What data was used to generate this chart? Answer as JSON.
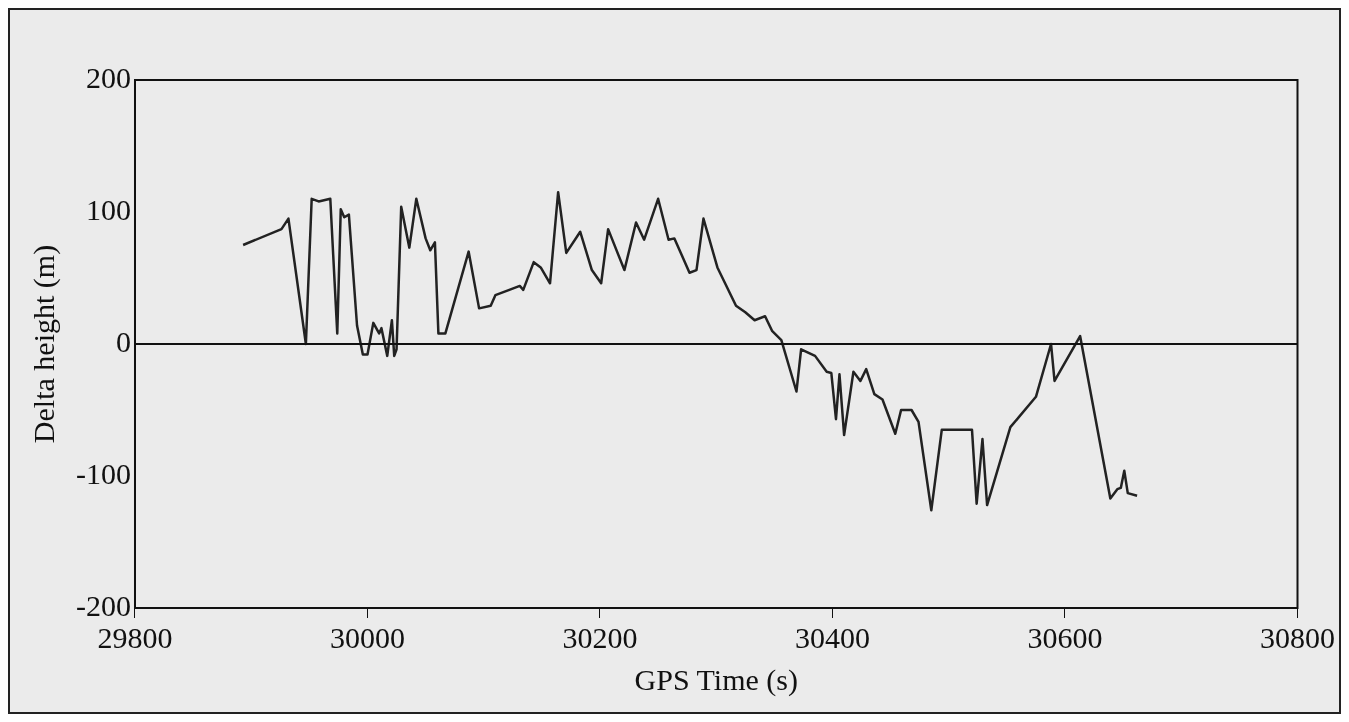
{
  "chart_data": {
    "type": "line",
    "xlabel": "GPS Time (s)",
    "ylabel": "Delta height (m)",
    "xlim": [
      29800,
      30800
    ],
    "xticks": [
      29800,
      30000,
      30200,
      30400,
      30600,
      30800
    ],
    "ylim": [
      -200,
      200
    ],
    "yticks": [
      -200,
      -100,
      0,
      100,
      200
    ],
    "grid": false,
    "legend": false,
    "marker": "none",
    "line_style": "solid",
    "ref_lines": [
      {
        "axis": "y",
        "value": 0,
        "color": "#111111"
      }
    ],
    "series": [
      {
        "color": "#222222",
        "x": [
          29893,
          29926,
          29932,
          29947,
          29952,
          29958,
          29968,
          29974,
          29977,
          29980,
          29984,
          29991,
          29996,
          30000,
          30005,
          30010,
          30012,
          30017,
          30021,
          30023,
          30025,
          30029,
          30036,
          30042,
          30050,
          30054,
          30058,
          30061,
          30067,
          30087,
          30096,
          30106,
          30110,
          30122,
          30131,
          30134,
          30143,
          30149,
          30157,
          30164,
          30171,
          30183,
          30193,
          30201,
          30207,
          30221,
          30231,
          30238,
          30250,
          30259,
          30264,
          30277,
          30283,
          30289,
          30301,
          30317,
          30325,
          30333,
          30342,
          30348,
          30356,
          30369,
          30373,
          30385,
          30395,
          30399,
          30403,
          30406,
          30410,
          30418,
          30424,
          30429,
          30436,
          30443,
          30454,
          30459,
          30468,
          30474,
          30485,
          30494,
          30520,
          30524,
          30529,
          30533,
          30553,
          30575,
          30588,
          30591,
          30613,
          30639,
          30645,
          30648,
          30651,
          30654,
          30662
        ],
        "values": [
          75,
          87,
          95,
          0,
          110,
          108,
          110,
          8,
          102,
          96,
          98,
          14,
          -8,
          -8,
          16,
          8,
          12,
          -9,
          18,
          -9,
          -4,
          104,
          73,
          110,
          80,
          71,
          77,
          8,
          8,
          70,
          27,
          29,
          37,
          41,
          44,
          41,
          62,
          58,
          46,
          115,
          69,
          85,
          56,
          46,
          87,
          56,
          92,
          79,
          110,
          79,
          80,
          54,
          56,
          95,
          58,
          29,
          24,
          18,
          21,
          10,
          3,
          -36,
          -4,
          -9,
          -21,
          -22,
          -57,
          -23,
          -69,
          -21,
          -28,
          -19,
          -38,
          -42,
          -68,
          -50,
          -50,
          -59,
          -126,
          -65,
          -65,
          -121,
          -72,
          -122,
          -63,
          -40,
          0,
          -28,
          6,
          -117,
          -110,
          -109,
          -96,
          -113,
          -115
        ]
      }
    ]
  }
}
